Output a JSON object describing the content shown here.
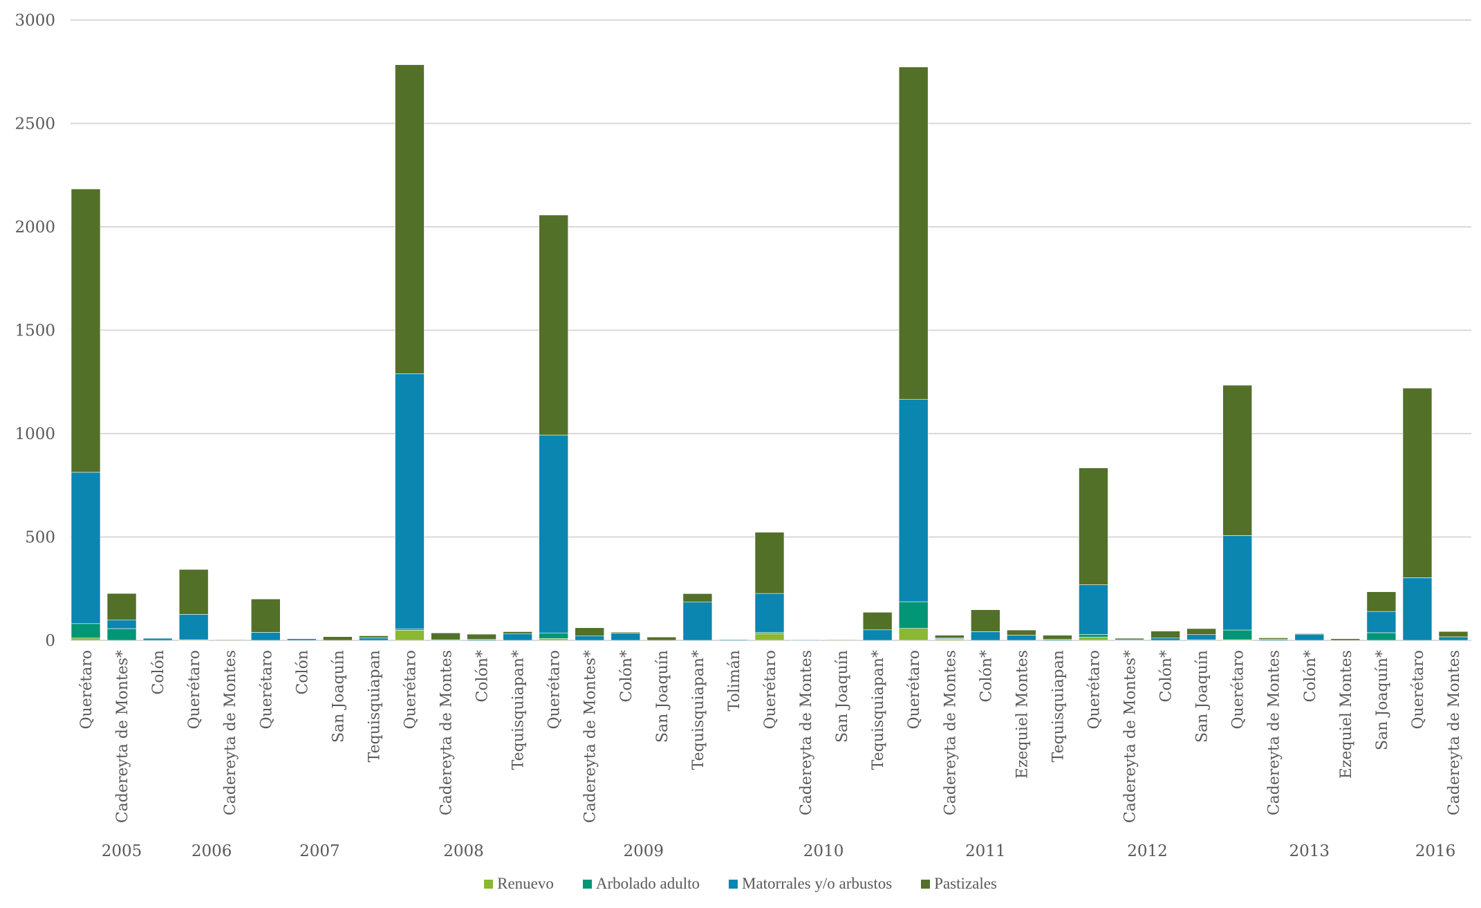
{
  "chart_data": {
    "type": "bar",
    "stacked": true,
    "title": "",
    "xlabel": "",
    "ylabel": "",
    "ylim": [
      0,
      3000
    ],
    "yticks": [
      0,
      500,
      1000,
      1500,
      2000,
      2500,
      3000
    ],
    "grid": true,
    "legend_position": "bottom",
    "groups": [
      {
        "year": "2005",
        "count": 3
      },
      {
        "year": "2006",
        "count": 2
      },
      {
        "year": "2007",
        "count": 4
      },
      {
        "year": "2008",
        "count": 4
      },
      {
        "year": "2009",
        "count": 6
      },
      {
        "year": "2010",
        "count": 4
      },
      {
        "year": "2011",
        "count": 5
      },
      {
        "year": "2012",
        "count": 4
      },
      {
        "year": "2013",
        "count": 5
      },
      {
        "year": "2016",
        "count": 2
      }
    ],
    "categories": [
      "Querétaro",
      "Cadereyta de Montes*",
      "Colón",
      "Querétaro",
      "Cadereyta de Montes",
      "Querétaro",
      "Colón",
      "San Joaquín",
      "Tequisquiapan",
      "Querétaro",
      "Cadereyta de Montes",
      "Colón*",
      "Tequisquiapan*",
      "Querétaro",
      "Cadereyta de Montes*",
      "Colón*",
      "San Joaquín",
      "Tequisquiapan*",
      "Tolimán",
      "Querétaro",
      "Cadereyta de Montes",
      "San Joaquín",
      "Tequisquiapan*",
      "Querétaro",
      "Cadereyta de Montes",
      "Colón*",
      "Ezequiel Montes",
      "Tequisquiapan",
      "Querétaro",
      "Cadereyta de Montes*",
      "Colón*",
      "San Joaquín",
      "Querétaro",
      "Cadereyta de Montes",
      "Colón*",
      "Ezequiel Montes",
      "San Joaquín*",
      "Querétaro",
      "Cadereyta de Montes"
    ],
    "series": [
      {
        "name": "Renuevo",
        "color": "#8ab833",
        "values": [
          11,
          0,
          0,
          3,
          0,
          0,
          0,
          0,
          0,
          49,
          0,
          0,
          0,
          9,
          0,
          0,
          0,
          0,
          0,
          32,
          0,
          0,
          0,
          58,
          6,
          0,
          0,
          0,
          16,
          0,
          0,
          0,
          3,
          0,
          0,
          0,
          0,
          0,
          0
        ]
      },
      {
        "name": "Arbolado adulto",
        "color": "#029676",
        "values": [
          70,
          57,
          0,
          0,
          0,
          0,
          0,
          0,
          0,
          7,
          0,
          0,
          0,
          27,
          0,
          0,
          0,
          0,
          0,
          7,
          0,
          0,
          0,
          129,
          3,
          0,
          0,
          0,
          13,
          0,
          0,
          3,
          47,
          0,
          0,
          0,
          37,
          0,
          0
        ]
      },
      {
        "name": "Matorrales y/o arbustos",
        "color": "#0b86b0",
        "values": [
          732,
          41,
          10,
          123,
          0,
          39,
          8,
          0,
          12,
          1234,
          3,
          5,
          31,
          957,
          21,
          35,
          0,
          185,
          4,
          188,
          2,
          0,
          51,
          978,
          2,
          42,
          25,
          5,
          240,
          3,
          11,
          25,
          457,
          5,
          31,
          0,
          103,
          303,
          17
        ]
      },
      {
        "name": "Pastizales",
        "color": "#537028",
        "values": [
          1370,
          129,
          0,
          217,
          3,
          161,
          0,
          18,
          10,
          1494,
          33,
          25,
          11,
          1064,
          40,
          5,
          16,
          41,
          0,
          296,
          0,
          2,
          85,
          1608,
          14,
          106,
          25,
          20,
          565,
          7,
          34,
          29,
          727,
          7,
          2,
          8,
          95,
          917,
          26
        ]
      }
    ]
  }
}
